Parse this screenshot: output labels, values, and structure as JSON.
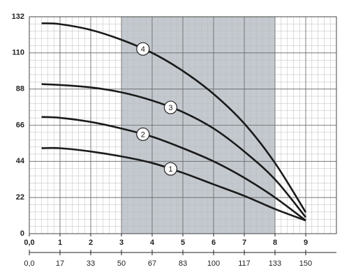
{
  "chart_data": {
    "type": "line",
    "x": [
      0.4,
      1,
      2,
      3,
      4,
      5,
      6,
      7,
      8,
      9
    ],
    "series": [
      {
        "name": "1",
        "color": "#1a1a1a",
        "values": [
          52,
          52,
          50,
          47,
          43,
          37,
          30,
          23,
          15,
          8
        ]
      },
      {
        "name": "2",
        "color": "#1a1a1a",
        "values": [
          71,
          70.5,
          68,
          64,
          59,
          52,
          44,
          34,
          22,
          8
        ]
      },
      {
        "name": "3",
        "color": "#1a1a1a",
        "values": [
          91,
          90.5,
          89,
          86,
          81,
          74,
          64,
          50,
          33,
          10
        ]
      },
      {
        "name": "4",
        "color": "#1a1a1a",
        "values": [
          128,
          127.5,
          124,
          118,
          110,
          99,
          85,
          67,
          43,
          13
        ]
      }
    ],
    "xlim": [
      0,
      10
    ],
    "xticks": [
      {
        "value": 0,
        "label": "0,0"
      },
      1,
      2,
      3,
      4,
      5,
      6,
      7,
      8,
      9
    ],
    "x2lim": [
      0,
      166.67
    ],
    "x2ticks": [
      {
        "value": 0,
        "label": "0,0"
      },
      {
        "value": 16.67,
        "label": "17"
      },
      {
        "value": 33.33,
        "label": "33"
      },
      50,
      {
        "value": 66.67,
        "label": "67"
      },
      {
        "value": 83.33,
        "label": "83"
      },
      100,
      {
        "value": 116.67,
        "label": "117"
      },
      {
        "value": 133.33,
        "label": "133"
      },
      150
    ],
    "ylim": [
      0,
      132
    ],
    "yticks": [
      0,
      22,
      44,
      66,
      88,
      110,
      132
    ],
    "grid": true,
    "minor_divisions": 5,
    "shaded_range": [
      3,
      8
    ],
    "shade_color": "#c3c9cf"
  }
}
